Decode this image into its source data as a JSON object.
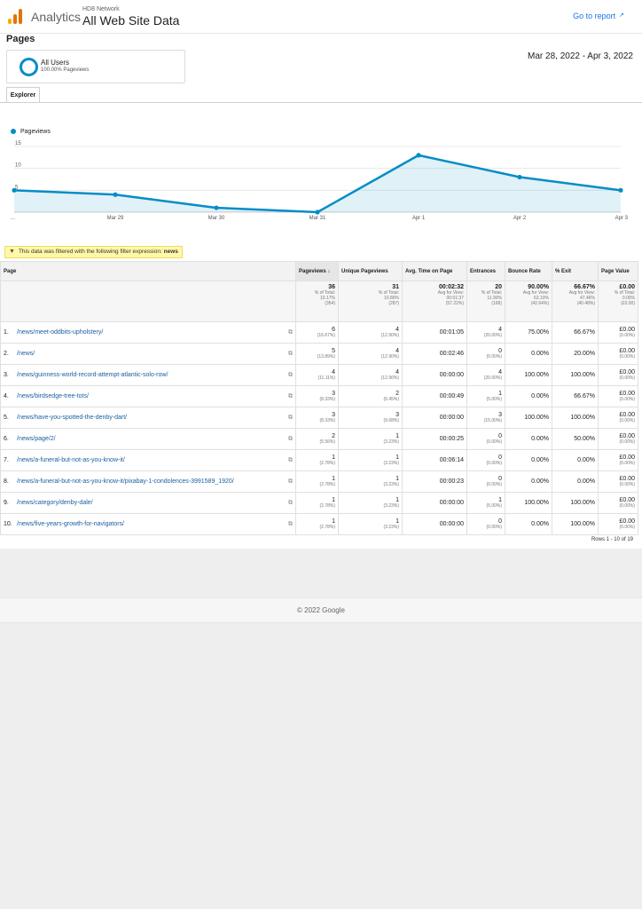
{
  "header": {
    "app_name": "Analytics",
    "network": "HD8 Network",
    "property": "All Web Site Data",
    "goto_report": "Go to report",
    "goto_icon": "external-link-icon",
    "logo_colors": [
      "#f9ab00",
      "#e37400",
      "#e37400"
    ]
  },
  "page_title": "Pages",
  "segment": {
    "name": "All Users",
    "sub": "100.00% Pageviews",
    "color": "#058dc7"
  },
  "date_range": "Mar 28, 2022 - Apr 3, 2022",
  "tab": "Explorer",
  "chart_data": {
    "type": "area",
    "series": [
      {
        "name": "Pageviews",
        "values": [
          5,
          4,
          1,
          0,
          13,
          8,
          5
        ]
      }
    ],
    "categories": [
      "...",
      "Mar 29",
      "Mar 30",
      "Mar 31",
      "Apr 1",
      "Apr 2",
      "Apr 3"
    ],
    "y_ticks": [
      "15",
      "10",
      "5"
    ],
    "ylim": [
      0,
      15
    ],
    "color": "#058dc7",
    "grid": true,
    "legend": "top-left"
  },
  "filter": {
    "text": "This data was filtered with the following filter expression:",
    "expression": "news",
    "icon": "filter-icon"
  },
  "table": {
    "columns": [
      "Page",
      "Pageviews",
      "Unique Pageviews",
      "Avg. Time on Page",
      "Entrances",
      "Bounce Rate",
      "% Exit",
      "Page Value"
    ],
    "sort_icon": "arrow-down-icon",
    "totals": {
      "pageviews": {
        "value": "36",
        "l1": "% of Total:",
        "l2": "10.17%",
        "l3": "(354)"
      },
      "unique": {
        "value": "31",
        "l1": "% of Total:",
        "l2": "10.80%",
        "l3": "(287)"
      },
      "avg_time": {
        "value": "00:02:32",
        "l1": "Avg for View:",
        "l2": "00:01:37",
        "l3": "(57.22%)"
      },
      "entrances": {
        "value": "20",
        "l1": "% of Total:",
        "l2": "11.90%",
        "l3": "(168)"
      },
      "bounce": {
        "value": "90.00%",
        "l1": "Avg for View:",
        "l2": "63.10%",
        "l3": "(42.64%)"
      },
      "exit": {
        "value": "66.67%",
        "l1": "Avg for View:",
        "l2": "47.46%",
        "l3": "(40.48%)"
      },
      "value": {
        "value": "£0.00",
        "l1": "% of Total:",
        "l2": "0.00%",
        "l3": "(£0.00)"
      }
    },
    "rows": [
      {
        "n": "1.",
        "page": "/news/meet-oddbits-upholstery/",
        "pv": "6",
        "pvp": "(16.67%)",
        "upv": "4",
        "upvp": "(12.90%)",
        "time": "00:01:05",
        "ent": "4",
        "entp": "(20.00%)",
        "bounce": "75.00%",
        "exit": "66.67%",
        "val": "£0.00",
        "valp": "(0.00%)"
      },
      {
        "n": "2.",
        "page": "/news/",
        "pv": "5",
        "pvp": "(13.89%)",
        "upv": "4",
        "upvp": "(12.90%)",
        "time": "00:02:46",
        "ent": "0",
        "entp": "(0.00%)",
        "bounce": "0.00%",
        "exit": "20.00%",
        "val": "£0.00",
        "valp": "(0.00%)"
      },
      {
        "n": "3.",
        "page": "/news/guinness-world-record-attempt-atlantic-solo-row/",
        "pv": "4",
        "pvp": "(11.11%)",
        "upv": "4",
        "upvp": "(12.90%)",
        "time": "00:00:00",
        "ent": "4",
        "entp": "(20.00%)",
        "bounce": "100.00%",
        "exit": "100.00%",
        "val": "£0.00",
        "valp": "(0.00%)"
      },
      {
        "n": "4.",
        "page": "/news/birdsedge-tree-tots/",
        "pv": "3",
        "pvp": "(8.33%)",
        "upv": "2",
        "upvp": "(6.45%)",
        "time": "00:00:49",
        "ent": "1",
        "entp": "(5.00%)",
        "bounce": "0.00%",
        "exit": "66.67%",
        "val": "£0.00",
        "valp": "(0.00%)"
      },
      {
        "n": "5.",
        "page": "/news/have-you-spotted-the-denby-dart/",
        "pv": "3",
        "pvp": "(8.33%)",
        "upv": "3",
        "upvp": "(9.68%)",
        "time": "00:00:00",
        "ent": "3",
        "entp": "(15.00%)",
        "bounce": "100.00%",
        "exit": "100.00%",
        "val": "£0.00",
        "valp": "(0.00%)"
      },
      {
        "n": "6.",
        "page": "/news/page/2/",
        "pv": "2",
        "pvp": "(5.56%)",
        "upv": "1",
        "upvp": "(3.23%)",
        "time": "00:00:25",
        "ent": "0",
        "entp": "(0.00%)",
        "bounce": "0.00%",
        "exit": "50.00%",
        "val": "£0.00",
        "valp": "(0.00%)"
      },
      {
        "n": "7.",
        "page": "/news/a-funeral-but-not-as-you-know-it/",
        "pv": "1",
        "pvp": "(2.78%)",
        "upv": "1",
        "upvp": "(3.23%)",
        "time": "00:06:14",
        "ent": "0",
        "entp": "(0.00%)",
        "bounce": "0.00%",
        "exit": "0.00%",
        "val": "£0.00",
        "valp": "(0.00%)"
      },
      {
        "n": "8.",
        "page": "/news/a-funeral-but-not-as-you-know-it/pixabay-1-condolences-3991589_1920/",
        "pv": "1",
        "pvp": "(2.78%)",
        "upv": "1",
        "upvp": "(3.23%)",
        "time": "00:00:23",
        "ent": "0",
        "entp": "(0.00%)",
        "bounce": "0.00%",
        "exit": "0.00%",
        "val": "£0.00",
        "valp": "(0.00%)"
      },
      {
        "n": "9.",
        "page": "/news/category/denby-dale/",
        "pv": "1",
        "pvp": "(2.78%)",
        "upv": "1",
        "upvp": "(3.23%)",
        "time": "00:00:00",
        "ent": "1",
        "entp": "(5.00%)",
        "bounce": "100.00%",
        "exit": "100.00%",
        "val": "£0.00",
        "valp": "(0.00%)"
      },
      {
        "n": "10.",
        "page": "/news/five-years-growth-for-navigators/",
        "pv": "1",
        "pvp": "(2.78%)",
        "upv": "1",
        "upvp": "(3.23%)",
        "time": "00:00:00",
        "ent": "0",
        "entp": "(0.00%)",
        "bounce": "0.00%",
        "exit": "100.00%",
        "val": "£0.00",
        "valp": "(0.00%)"
      }
    ],
    "rows_info": "Rows 1 - 10 of 19"
  },
  "footer": "© 2022 Google"
}
